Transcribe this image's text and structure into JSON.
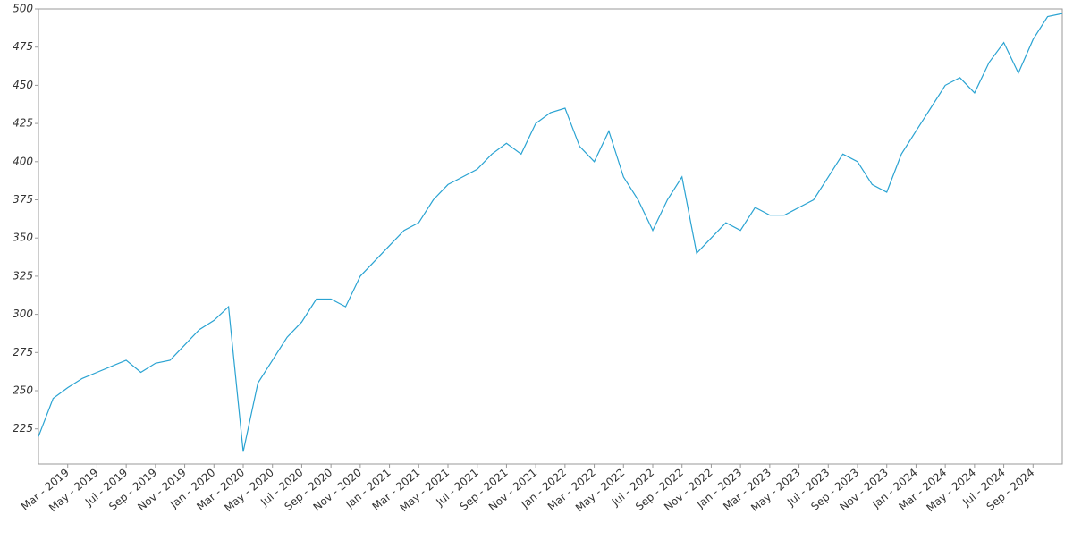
{
  "chart_data": {
    "type": "line",
    "color": "#2aa3d2",
    "grid": false,
    "x": [
      "2019-01",
      "2019-02",
      "2019-03",
      "2019-04",
      "2019-05",
      "2019-06",
      "2019-07",
      "2019-08",
      "2019-09",
      "2019-10",
      "2019-11",
      "2019-12",
      "2020-01",
      "2020-02",
      "2020-03",
      "2020-04",
      "2020-05",
      "2020-06",
      "2020-07",
      "2020-08",
      "2020-09",
      "2020-10",
      "2020-11",
      "2020-12",
      "2021-01",
      "2021-02",
      "2021-03",
      "2021-04",
      "2021-05",
      "2021-06",
      "2021-07",
      "2021-08",
      "2021-09",
      "2021-10",
      "2021-11",
      "2021-12",
      "2022-01",
      "2022-02",
      "2022-03",
      "2022-04",
      "2022-05",
      "2022-06",
      "2022-07",
      "2022-08",
      "2022-09",
      "2022-10",
      "2022-11",
      "2022-12",
      "2023-01",
      "2023-02",
      "2023-03",
      "2023-04",
      "2023-05",
      "2023-06",
      "2023-07",
      "2023-08",
      "2023-09",
      "2023-10",
      "2023-11",
      "2023-12",
      "2024-01",
      "2024-02",
      "2024-03",
      "2024-04",
      "2024-05",
      "2024-06",
      "2024-07",
      "2024-08",
      "2024-09",
      "2024-10",
      "2024-11"
    ],
    "values": [
      220,
      245,
      252,
      258,
      262,
      266,
      270,
      262,
      268,
      270,
      280,
      290,
      296,
      305,
      210,
      255,
      270,
      285,
      295,
      310,
      310,
      305,
      325,
      335,
      345,
      355,
      360,
      375,
      385,
      390,
      395,
      405,
      412,
      405,
      425,
      432,
      435,
      410,
      400,
      420,
      390,
      375,
      355,
      375,
      390,
      340,
      350,
      360,
      355,
      370,
      365,
      365,
      370,
      375,
      390,
      405,
      400,
      385,
      380,
      405,
      420,
      435,
      450,
      455,
      445,
      465,
      478,
      458,
      480,
      495,
      497
    ],
    "xlim": [
      "2019-01",
      "2024-11"
    ],
    "xticks": [
      {
        "value": "2019-03",
        "label": "Mar - 2019"
      },
      {
        "value": "2019-05",
        "label": "May - 2019"
      },
      {
        "value": "2019-07",
        "label": "Jul - 2019"
      },
      {
        "value": "2019-09",
        "label": "Sep - 2019"
      },
      {
        "value": "2019-11",
        "label": "Nov - 2019"
      },
      {
        "value": "2020-01",
        "label": "Jan - 2020"
      },
      {
        "value": "2020-03",
        "label": "Mar - 2020"
      },
      {
        "value": "2020-05",
        "label": "May - 2020"
      },
      {
        "value": "2020-07",
        "label": "Jul - 2020"
      },
      {
        "value": "2020-09",
        "label": "Sep - 2020"
      },
      {
        "value": "2020-11",
        "label": "Nov - 2020"
      },
      {
        "value": "2021-01",
        "label": "Jan - 2021"
      },
      {
        "value": "2021-03",
        "label": "Mar - 2021"
      },
      {
        "value": "2021-05",
        "label": "May - 2021"
      },
      {
        "value": "2021-07",
        "label": "Jul - 2021"
      },
      {
        "value": "2021-09",
        "label": "Sep - 2021"
      },
      {
        "value": "2021-11",
        "label": "Nov - 2021"
      },
      {
        "value": "2022-01",
        "label": "Jan - 2022"
      },
      {
        "value": "2022-03",
        "label": "Mar - 2022"
      },
      {
        "value": "2022-05",
        "label": "May - 2022"
      },
      {
        "value": "2022-07",
        "label": "Jul - 2022"
      },
      {
        "value": "2022-09",
        "label": "Sep - 2022"
      },
      {
        "value": "2022-11",
        "label": "Nov - 2022"
      },
      {
        "value": "2023-01",
        "label": "Jan - 2023"
      },
      {
        "value": "2023-03",
        "label": "Mar - 2023"
      },
      {
        "value": "2023-05",
        "label": "May - 2023"
      },
      {
        "value": "2023-07",
        "label": "Jul - 2023"
      },
      {
        "value": "2023-09",
        "label": "Sep - 2023"
      },
      {
        "value": "2023-11",
        "label": "Nov - 2023"
      },
      {
        "value": "2024-01",
        "label": "Jan - 2024"
      },
      {
        "value": "2024-03",
        "label": "Mar - 2024"
      },
      {
        "value": "2024-05",
        "label": "May - 2024"
      },
      {
        "value": "2024-07",
        "label": "Jul - 2024"
      },
      {
        "value": "2024-09",
        "label": "Sep - 2024"
      }
    ],
    "ylim": [
      202,
      500
    ],
    "yticks": [
      225,
      250,
      275,
      300,
      325,
      350,
      375,
      400,
      425,
      450,
      475,
      500
    ]
  }
}
